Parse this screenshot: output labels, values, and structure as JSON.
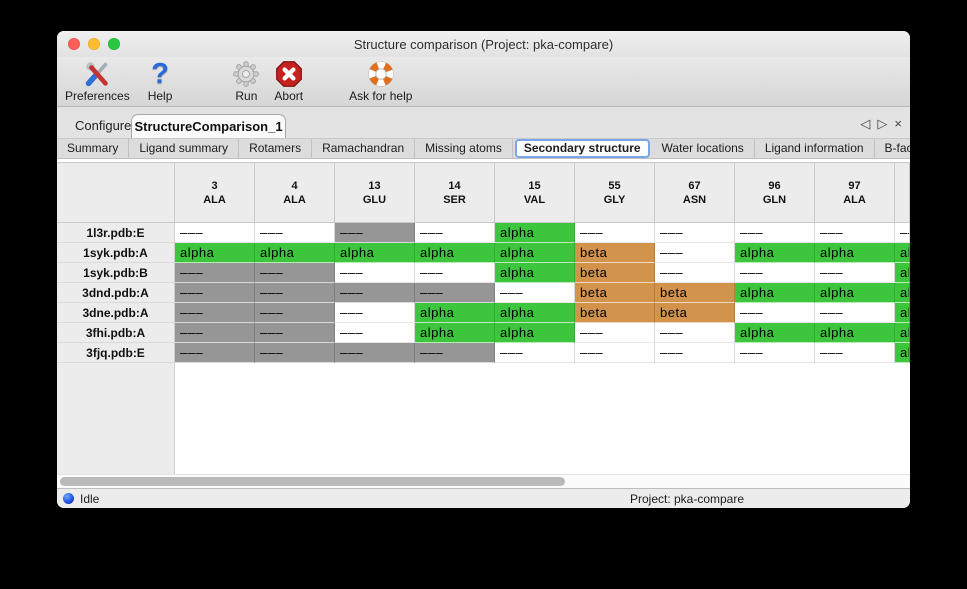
{
  "window": {
    "title": "Structure comparison (Project: pka-compare)"
  },
  "toolbar": {
    "buttons": [
      {
        "label": "Preferences",
        "icon": "tools-icon"
      },
      {
        "label": "Help",
        "icon": "question-icon"
      },
      {
        "label": "Run",
        "icon": "gear-icon"
      },
      {
        "label": "Abort",
        "icon": "abort-icon"
      },
      {
        "label": "Ask for help",
        "icon": "lifebuoy-icon"
      }
    ]
  },
  "tabs": {
    "items": [
      {
        "label": "Configure",
        "selected": false
      },
      {
        "label": "StructureComparison_1",
        "selected": true
      }
    ]
  },
  "subtabs": {
    "items": [
      "Summary",
      "Ligand summary",
      "Rotamers",
      "Ramachandran",
      "Missing atoms",
      "Secondary structure",
      "Water locations",
      "Ligand information",
      "B-factors"
    ],
    "selected": "Secondary structure"
  },
  "icons": {
    "prev": "◁",
    "next": "▷",
    "close": "×",
    "question_glyph": "?"
  },
  "table": {
    "columns": [
      {
        "num": "3",
        "res": "ALA"
      },
      {
        "num": "4",
        "res": "ALA"
      },
      {
        "num": "13",
        "res": "GLU"
      },
      {
        "num": "14",
        "res": "SER"
      },
      {
        "num": "15",
        "res": "VAL"
      },
      {
        "num": "55",
        "res": "GLY"
      },
      {
        "num": "67",
        "res": "ASN"
      },
      {
        "num": "96",
        "res": "GLN"
      },
      {
        "num": "97",
        "res": "ALA"
      },
      {
        "num": "",
        "res": ""
      }
    ],
    "cell_text": {
      "a": "alpha",
      "b": "beta",
      "g": "–––",
      "w": "–––"
    },
    "rows": [
      {
        "label": "1l3r.pdb:E",
        "states": [
          "w",
          "w",
          "g",
          "w",
          "a",
          "w",
          "w",
          "w",
          "w",
          "w"
        ]
      },
      {
        "label": "1syk.pdb:A",
        "states": [
          "a",
          "a",
          "a",
          "a",
          "a",
          "b",
          "w",
          "a",
          "a",
          "a"
        ]
      },
      {
        "label": "1syk.pdb:B",
        "states": [
          "g",
          "g",
          "w",
          "w",
          "a",
          "b",
          "w",
          "w",
          "w",
          "a"
        ]
      },
      {
        "label": "3dnd.pdb:A",
        "states": [
          "g",
          "g",
          "g",
          "g",
          "w",
          "b",
          "b",
          "a",
          "a",
          "a"
        ]
      },
      {
        "label": "3dne.pdb:A",
        "states": [
          "g",
          "g",
          "w",
          "a",
          "a",
          "b",
          "b",
          "w",
          "w",
          "a"
        ]
      },
      {
        "label": "3fhi.pdb:A",
        "states": [
          "g",
          "g",
          "w",
          "a",
          "a",
          "w",
          "w",
          "a",
          "a",
          "a"
        ]
      },
      {
        "label": "3fjq.pdb:E",
        "states": [
          "g",
          "g",
          "g",
          "g",
          "w",
          "w",
          "w",
          "w",
          "w",
          "a"
        ]
      }
    ]
  },
  "colors": {
    "alpha": "#3ec53e",
    "beta": "#d2944d",
    "missing": "#969696",
    "blank": "#ffffff",
    "traffic_close": "#ff5f57",
    "traffic_minimize": "#febc2e",
    "traffic_zoom": "#28c840"
  },
  "statusbar": {
    "status": "Idle",
    "project": "Project: pka-compare"
  }
}
